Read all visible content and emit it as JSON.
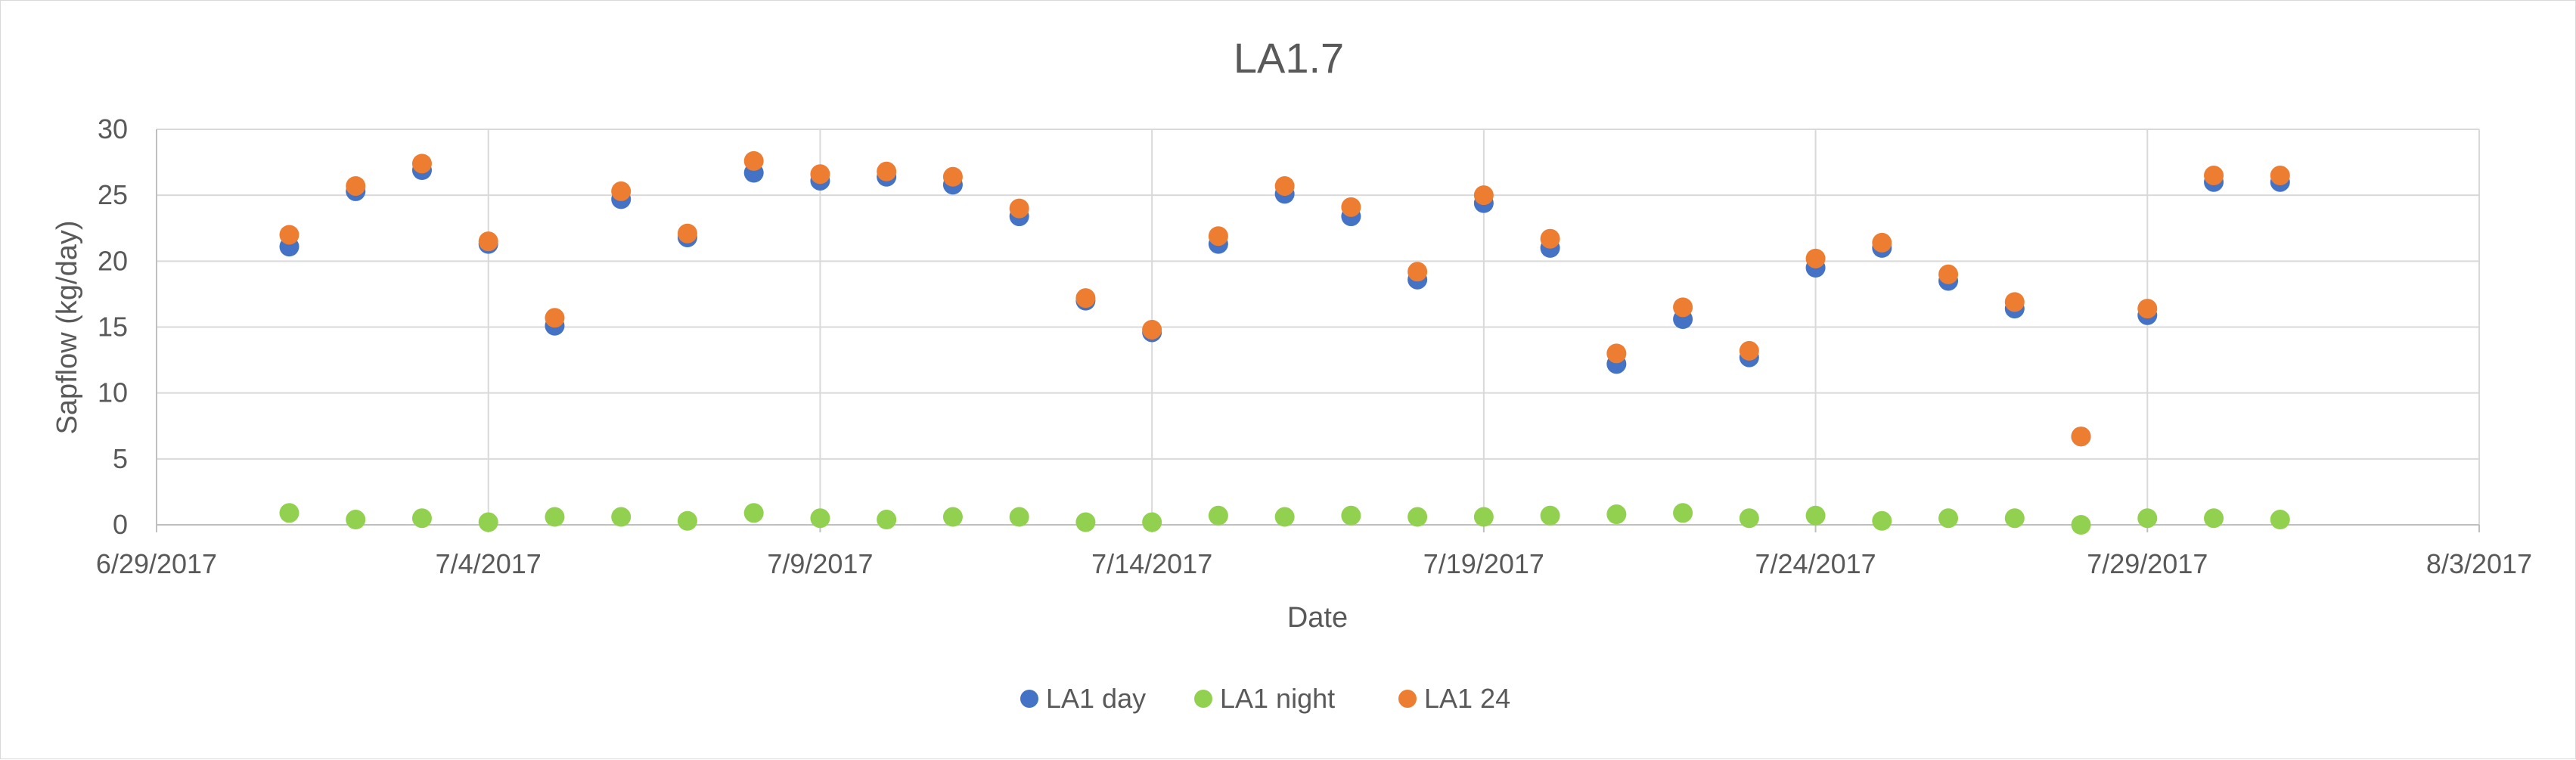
{
  "chart_data": {
    "type": "scatter",
    "title": "LA1.7",
    "xlabel": "Date",
    "ylabel": "Sapflow (kg/day)",
    "x_axis": {
      "kind": "date",
      "min": "2017-06-29",
      "max": "2017-08-03",
      "ticks": [
        "6/29/2017",
        "7/4/2017",
        "7/9/2017",
        "7/14/2017",
        "7/19/2017",
        "7/24/2017",
        "7/29/2017",
        "8/3/2017"
      ],
      "tick_dates": [
        "2017-06-29",
        "2017-07-04",
        "2017-07-09",
        "2017-07-14",
        "2017-07-19",
        "2017-07-24",
        "2017-07-29",
        "2017-08-03"
      ]
    },
    "y_axis": {
      "min": 0,
      "max": 30,
      "ticks": [
        "0",
        "5",
        "10",
        "15",
        "20",
        "25",
        "30"
      ]
    },
    "grid": true,
    "legend": "bottom",
    "x": [
      "2017-07-01",
      "2017-07-02",
      "2017-07-03",
      "2017-07-04",
      "2017-07-05",
      "2017-07-06",
      "2017-07-07",
      "2017-07-08",
      "2017-07-09",
      "2017-07-10",
      "2017-07-11",
      "2017-07-12",
      "2017-07-13",
      "2017-07-14",
      "2017-07-15",
      "2017-07-16",
      "2017-07-17",
      "2017-07-18",
      "2017-07-19",
      "2017-07-20",
      "2017-07-21",
      "2017-07-22",
      "2017-07-23",
      "2017-07-24",
      "2017-07-25",
      "2017-07-26",
      "2017-07-27",
      "2017-07-28",
      "2017-07-29",
      "2017-07-30",
      "2017-07-31"
    ],
    "series": [
      {
        "name": "LA1 day",
        "color": "#4472c4",
        "values": [
          21.1,
          25.3,
          26.9,
          21.3,
          15.1,
          24.7,
          21.8,
          26.7,
          26.1,
          26.4,
          25.8,
          23.4,
          17.0,
          14.6,
          21.3,
          25.1,
          23.4,
          18.6,
          24.4,
          21.0,
          12.2,
          15.6,
          12.7,
          19.5,
          21.0,
          18.5,
          16.4,
          6.7,
          15.9,
          26.0,
          26.0
        ]
      },
      {
        "name": "LA1 night",
        "color": "#92d050",
        "values": [
          0.9,
          0.4,
          0.5,
          0.2,
          0.6,
          0.6,
          0.3,
          0.9,
          0.5,
          0.4,
          0.6,
          0.6,
          0.2,
          0.2,
          0.7,
          0.6,
          0.7,
          0.6,
          0.6,
          0.7,
          0.8,
          0.9,
          0.5,
          0.7,
          0.3,
          0.5,
          0.5,
          0.0,
          0.5,
          0.5,
          0.4
        ]
      },
      {
        "name": "LA1 24",
        "color": "#ed7d31",
        "values": [
          22.0,
          25.7,
          27.4,
          21.5,
          15.7,
          25.3,
          22.1,
          27.6,
          26.6,
          26.8,
          26.4,
          24.0,
          17.2,
          14.8,
          21.9,
          25.7,
          24.1,
          19.2,
          25.0,
          21.7,
          13.0,
          16.5,
          13.2,
          20.2,
          21.4,
          19.0,
          16.9,
          6.7,
          16.4,
          26.5,
          26.5
        ]
      }
    ]
  }
}
